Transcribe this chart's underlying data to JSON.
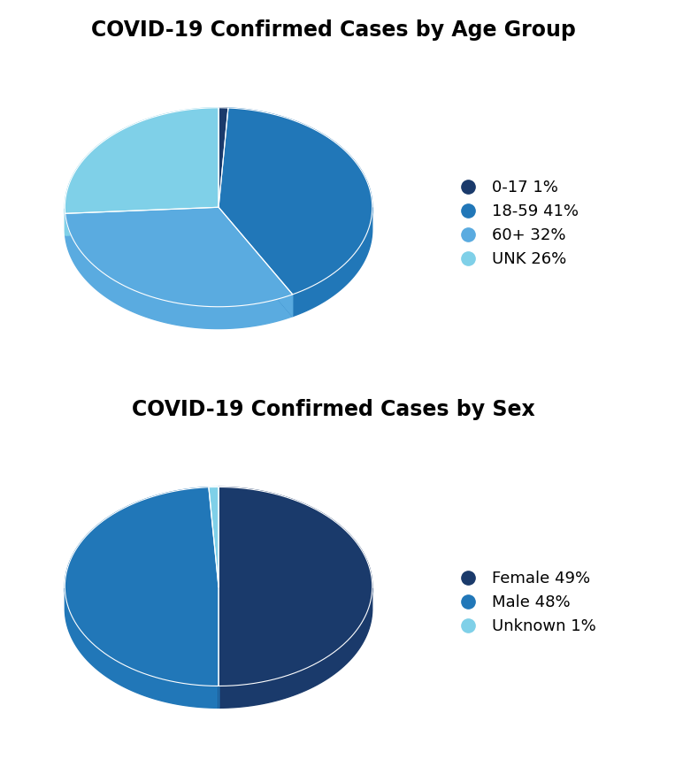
{
  "chart1_title": "COVID-19 Confirmed Cases by Age Group",
  "chart1_labels": [
    "0-17 1%",
    "18-59 41%",
    "60+ 32%",
    "UNK 26%"
  ],
  "chart1_values": [
    1,
    41,
    32,
    26
  ],
  "chart1_colors": [
    "#1a3a6b",
    "#2177b8",
    "#5aabe0",
    "#7fd0e8"
  ],
  "chart2_title": "COVID-19 Confirmed Cases by Sex",
  "chart2_labels": [
    "Female 49%",
    "Male 48%",
    "Unknown 1%"
  ],
  "chart2_values": [
    49,
    48,
    1
  ],
  "chart2_colors": [
    "#1a3a6b",
    "#2177b8",
    "#7fd0e8"
  ],
  "background_color": "#ffffff",
  "title_fontsize": 17,
  "legend_fontsize": 13
}
